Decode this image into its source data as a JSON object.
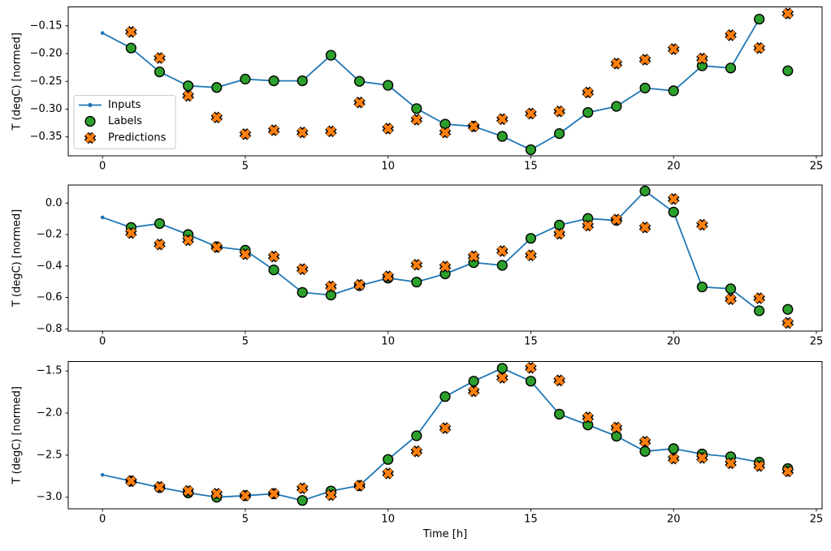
{
  "figure": {
    "xlabel": "Time [h]",
    "ylabel": "T (degC) [normed]",
    "background": "#ffffff",
    "colors": {
      "inputs_line": "#1f77b4",
      "labels_fill": "#2ca02c",
      "predictions_fill": "#ff7f0e",
      "marker_edge": "#000000",
      "spine": "#000000",
      "text": "#000000",
      "legend_border": "#cccccc",
      "legend_bg": "#ffffff"
    },
    "legend": {
      "items": [
        {
          "label": "Inputs",
          "marker": "line-dot-icon"
        },
        {
          "label": "Labels",
          "marker": "circle-icon"
        },
        {
          "label": "Predictions",
          "marker": "x-icon"
        }
      ]
    }
  },
  "chart_data": [
    {
      "type": "line",
      "title": "",
      "xlabel": "",
      "ylabel": "T (degC) [normed]",
      "xlim": [
        -1.2,
        25.2
      ],
      "ylim": [
        -0.384,
        -0.116
      ],
      "xticks": [
        0,
        5,
        10,
        15,
        20,
        25
      ],
      "xtick_labels": [
        "0",
        "5",
        "10",
        "15",
        "20",
        "25"
      ],
      "yticks": [
        -0.15,
        -0.2,
        -0.25,
        -0.3,
        -0.35
      ],
      "ytick_labels": [
        "−0.15",
        "−0.20",
        "−0.25",
        "−0.30",
        "−0.35"
      ],
      "grid": false,
      "legend_position": "upper-left-inside",
      "series": [
        {
          "name": "Inputs",
          "type": "line",
          "x": [
            0,
            1,
            2,
            3,
            4,
            5,
            6,
            7,
            8,
            9,
            10,
            11,
            12,
            13,
            14,
            15,
            16,
            17,
            18,
            19,
            20,
            21,
            22,
            23
          ],
          "y": [
            -0.163,
            -0.19,
            -0.233,
            -0.258,
            -0.261,
            -0.246,
            -0.249,
            -0.249,
            -0.203,
            -0.25,
            -0.257,
            -0.299,
            -0.327,
            -0.331,
            -0.349,
            -0.373,
            -0.344,
            -0.306,
            -0.295,
            -0.262,
            -0.267,
            -0.222,
            -0.226,
            -0.138
          ]
        },
        {
          "name": "Labels",
          "type": "scatter-circle",
          "x": [
            1,
            2,
            3,
            4,
            5,
            6,
            7,
            8,
            9,
            10,
            11,
            12,
            13,
            14,
            15,
            16,
            17,
            18,
            19,
            20,
            21,
            22,
            23,
            24
          ],
          "y": [
            -0.19,
            -0.233,
            -0.258,
            -0.261,
            -0.246,
            -0.249,
            -0.249,
            -0.203,
            -0.25,
            -0.257,
            -0.299,
            -0.327,
            -0.331,
            -0.349,
            -0.373,
            -0.344,
            -0.306,
            -0.295,
            -0.262,
            -0.267,
            -0.222,
            -0.226,
            -0.138,
            -0.231
          ]
        },
        {
          "name": "Predictions",
          "type": "scatter-x",
          "x": [
            1,
            2,
            3,
            4,
            5,
            6,
            7,
            8,
            9,
            10,
            11,
            12,
            13,
            14,
            15,
            16,
            17,
            18,
            19,
            20,
            21,
            22,
            23,
            24
          ],
          "y": [
            -0.161,
            -0.208,
            -0.276,
            -0.315,
            -0.345,
            -0.338,
            -0.342,
            -0.34,
            -0.288,
            -0.335,
            -0.319,
            -0.342,
            -0.331,
            -0.318,
            -0.308,
            -0.304,
            -0.27,
            -0.218,
            -0.211,
            -0.192,
            -0.209,
            -0.167,
            -0.19,
            -0.128
          ]
        }
      ]
    },
    {
      "type": "line",
      "title": "",
      "xlabel": "",
      "ylabel": "T (degC) [normed]",
      "xlim": [
        -1.2,
        25.2
      ],
      "ylim": [
        -0.814,
        0.115
      ],
      "xticks": [
        0,
        5,
        10,
        15,
        20,
        25
      ],
      "xtick_labels": [
        "0",
        "5",
        "10",
        "15",
        "20",
        "25"
      ],
      "yticks": [
        0.0,
        -0.2,
        -0.4,
        -0.6,
        -0.8
      ],
      "ytick_labels": [
        "0.0",
        "−0.2",
        "−0.4",
        "−0.6",
        "−0.8"
      ],
      "grid": false,
      "series": [
        {
          "name": "Inputs",
          "type": "line",
          "x": [
            0,
            1,
            2,
            3,
            4,
            5,
            6,
            7,
            8,
            9,
            10,
            11,
            12,
            13,
            14,
            15,
            16,
            17,
            18,
            19,
            20,
            21,
            22,
            23
          ],
          "y": [
            -0.091,
            -0.155,
            -0.13,
            -0.2,
            -0.278,
            -0.3,
            -0.425,
            -0.568,
            -0.585,
            -0.525,
            -0.477,
            -0.502,
            -0.45,
            -0.378,
            -0.396,
            -0.224,
            -0.14,
            -0.098,
            -0.11,
            0.077,
            -0.057,
            -0.533,
            -0.545,
            -0.685
          ]
        },
        {
          "name": "Labels",
          "type": "scatter-circle",
          "x": [
            1,
            2,
            3,
            4,
            5,
            6,
            7,
            8,
            9,
            10,
            11,
            12,
            13,
            14,
            15,
            16,
            17,
            18,
            19,
            20,
            21,
            22,
            23,
            24
          ],
          "y": [
            -0.155,
            -0.13,
            -0.2,
            -0.278,
            -0.3,
            -0.425,
            -0.568,
            -0.585,
            -0.525,
            -0.477,
            -0.502,
            -0.45,
            -0.378,
            -0.396,
            -0.224,
            -0.14,
            -0.098,
            -0.11,
            0.077,
            -0.057,
            -0.533,
            -0.545,
            -0.685,
            -0.676
          ]
        },
        {
          "name": "Predictions",
          "type": "scatter-x",
          "x": [
            1,
            2,
            3,
            4,
            5,
            6,
            7,
            8,
            9,
            10,
            11,
            12,
            13,
            14,
            15,
            16,
            17,
            18,
            19,
            20,
            21,
            22,
            23,
            24
          ],
          "y": [
            -0.19,
            -0.263,
            -0.236,
            -0.28,
            -0.325,
            -0.34,
            -0.42,
            -0.53,
            -0.52,
            -0.466,
            -0.392,
            -0.404,
            -0.339,
            -0.305,
            -0.332,
            -0.195,
            -0.143,
            -0.105,
            -0.155,
            0.026,
            -0.138,
            -0.611,
            -0.605,
            -0.762
          ]
        }
      ]
    },
    {
      "type": "line",
      "title": "",
      "xlabel": "Time [h]",
      "ylabel": "T (degC) [normed]",
      "xlim": [
        -1.2,
        25.2
      ],
      "ylim": [
        -3.1375,
        -1.3875
      ],
      "xticks": [
        0,
        5,
        10,
        15,
        20,
        25
      ],
      "xtick_labels": [
        "0",
        "5",
        "10",
        "15",
        "20",
        "25"
      ],
      "yticks": [
        -1.5,
        -2.0,
        -2.5,
        -3.0
      ],
      "ytick_labels": [
        "−1.5",
        "−2.0",
        "−2.5",
        "−3.0"
      ],
      "grid": false,
      "series": [
        {
          "name": "Inputs",
          "type": "line",
          "x": [
            0,
            1,
            2,
            3,
            4,
            5,
            6,
            7,
            8,
            9,
            10,
            11,
            12,
            13,
            14,
            15,
            16,
            17,
            18,
            19,
            20,
            21,
            22,
            23
          ],
          "y": [
            -2.734,
            -2.808,
            -2.885,
            -2.948,
            -3.0,
            -2.981,
            -2.958,
            -3.038,
            -2.926,
            -2.862,
            -2.551,
            -2.269,
            -1.804,
            -1.621,
            -1.468,
            -1.621,
            -2.013,
            -2.141,
            -2.275,
            -2.455,
            -2.423,
            -2.487,
            -2.519,
            -2.583
          ]
        },
        {
          "name": "Labels",
          "type": "scatter-circle",
          "x": [
            1,
            2,
            3,
            4,
            5,
            6,
            7,
            8,
            9,
            10,
            11,
            12,
            13,
            14,
            15,
            16,
            17,
            18,
            19,
            20,
            21,
            22,
            23,
            24
          ],
          "y": [
            -2.808,
            -2.885,
            -2.948,
            -3.0,
            -2.981,
            -2.958,
            -3.038,
            -2.926,
            -2.862,
            -2.551,
            -2.269,
            -1.804,
            -1.621,
            -1.468,
            -1.621,
            -2.013,
            -2.141,
            -2.275,
            -2.455,
            -2.423,
            -2.487,
            -2.519,
            -2.583,
            -2.66
          ]
        },
        {
          "name": "Predictions",
          "type": "scatter-x",
          "x": [
            1,
            2,
            3,
            4,
            5,
            6,
            7,
            8,
            9,
            10,
            11,
            12,
            13,
            14,
            15,
            16,
            17,
            18,
            19,
            20,
            21,
            22,
            23,
            24
          ],
          "y": [
            -2.808,
            -2.878,
            -2.925,
            -2.958,
            -2.981,
            -2.958,
            -2.894,
            -2.974,
            -2.862,
            -2.717,
            -2.455,
            -2.179,
            -1.74,
            -1.58,
            -1.462,
            -1.612,
            -2.051,
            -2.173,
            -2.34,
            -2.541,
            -2.532,
            -2.596,
            -2.628,
            -2.692
          ]
        }
      ]
    }
  ]
}
